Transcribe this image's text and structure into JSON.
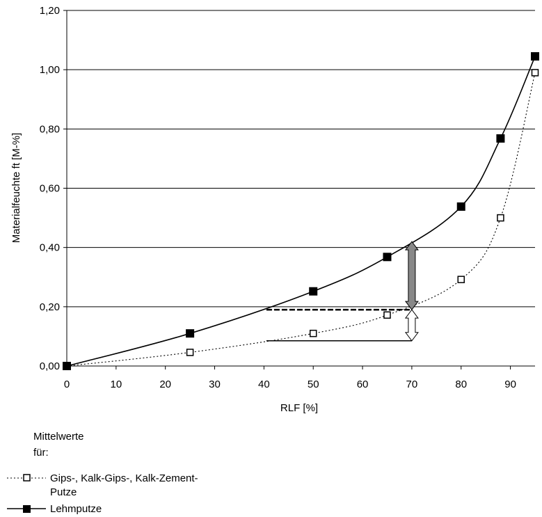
{
  "chart_data": {
    "type": "line",
    "xlabel": "RLF [%]",
    "ylabel": "Materialfeuchte ft [M-%]",
    "xlim": [
      0,
      95
    ],
    "ylim": [
      0,
      1.2
    ],
    "x_ticks": [
      "0",
      "10",
      "20",
      "30",
      "40",
      "50",
      "60",
      "70",
      "80",
      "90"
    ],
    "y_ticks": [
      "0,00",
      "0,20",
      "0,40",
      "0,60",
      "0,80",
      "1,00",
      "1,20"
    ],
    "grid": "horizontal",
    "series": [
      {
        "name": "Gips-, Kalk-Gips-, Kalk-Zement-Putze",
        "style": "dotted",
        "marker": "open-square",
        "x": [
          0,
          25,
          50,
          65,
          80,
          88,
          95
        ],
        "values": [
          0.0,
          0.046,
          0.11,
          0.172,
          0.292,
          0.5,
          0.99
        ]
      },
      {
        "name": "Lehmputze",
        "style": "solid",
        "marker": "filled-square",
        "x": [
          0,
          25,
          50,
          65,
          80,
          88,
          95
        ],
        "values": [
          0.0,
          0.11,
          0.252,
          0.368,
          0.538,
          0.768,
          1.045
        ]
      }
    ],
    "annotations": [
      {
        "type": "difference-arrow",
        "x": 70,
        "from": 0.19,
        "to": 0.42,
        "color": "#888888"
      },
      {
        "type": "difference-arrow",
        "x": 70,
        "from": 0.085,
        "to": 0.19,
        "color": "#ffffff"
      },
      {
        "type": "dashed-line",
        "x_from": 40.5,
        "x_to": 70,
        "y": 0.19
      },
      {
        "type": "solid-line",
        "x_from": 40.5,
        "x_to": 70,
        "y": 0.085
      }
    ]
  },
  "legend": {
    "title_line1": "Mittelwerte",
    "title_line2": "für:",
    "entry1_line1": "Gips-, Kalk-Gips-, Kalk-Zement-",
    "entry1_line2": "Putze",
    "entry2": "Lehmputze"
  }
}
